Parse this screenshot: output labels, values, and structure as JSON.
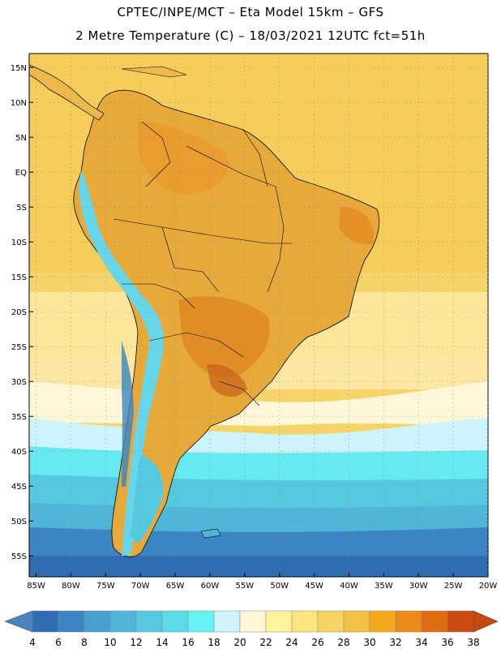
{
  "header": {
    "line1": "CPTEC/INPE/MCT –  Eta Model 15km – GFS",
    "line2": "2 Metre Temperature (C) – 18/03/2021 12UTC fct=51h"
  },
  "map": {
    "region": "South America",
    "lat_range": [
      -58,
      17
    ],
    "lon_range": [
      -86,
      -20
    ],
    "lat_ticks": [
      "15N",
      "10N",
      "5N",
      "EQ",
      "5S",
      "10S",
      "15S",
      "20S",
      "25S",
      "30S",
      "35S",
      "40S",
      "45S",
      "50S",
      "55S"
    ],
    "lon_ticks": [
      "85W",
      "80W",
      "75W",
      "70W",
      "65W",
      "60W",
      "55W",
      "50W",
      "45W",
      "40W",
      "35W",
      "30W",
      "25W",
      "20W"
    ]
  },
  "colorbar": {
    "labels": [
      "4",
      "6",
      "8",
      "10",
      "12",
      "14",
      "16",
      "18",
      "20",
      "22",
      "24",
      "26",
      "28",
      "30",
      "32",
      "34",
      "36",
      "38"
    ],
    "low_color": "#4a85c2",
    "high_color": "#c6480f",
    "colors": [
      "#2f6cb1",
      "#3b86c2",
      "#47a0cf",
      "#4fb6da",
      "#55c9e0",
      "#5cdbe8",
      "#67f3f6",
      "#cdf4fb",
      "#fff7d8",
      "#fff39e",
      "#fbe57f",
      "#f6d464",
      "#f0c143",
      "#f4aa1e",
      "#ec8a1a",
      "#e06c12",
      "#cb4a0f"
    ]
  }
}
